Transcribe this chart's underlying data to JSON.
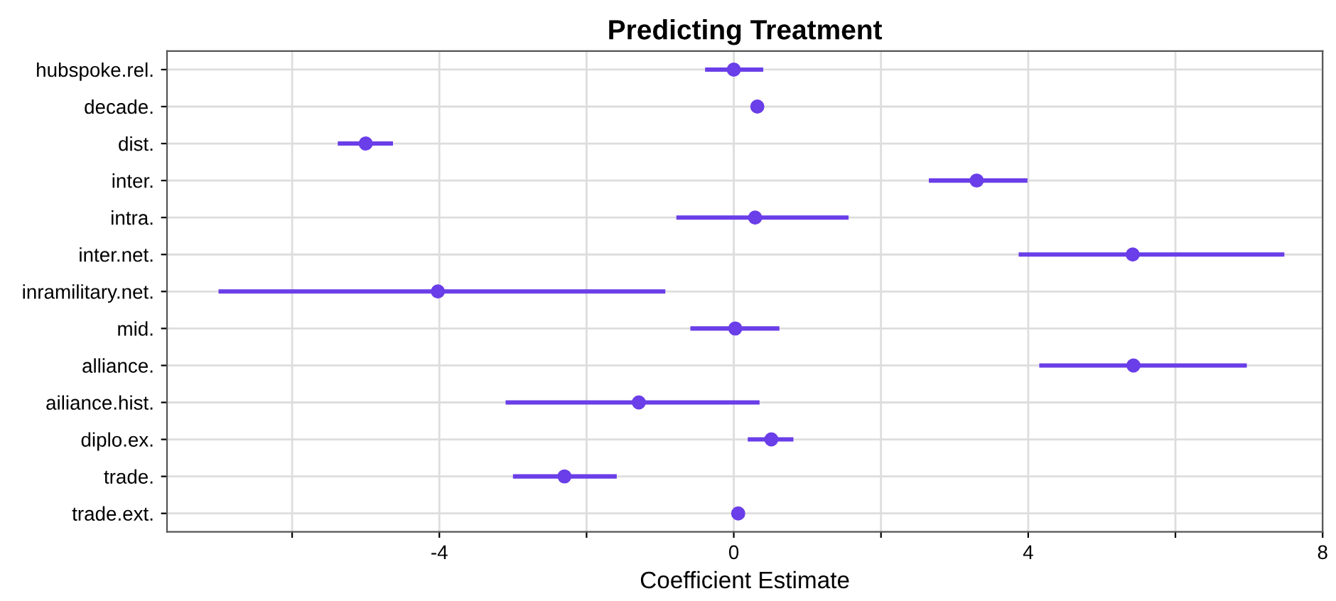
{
  "chart_data": {
    "type": "scatter",
    "orientation": "horizontal",
    "title": "Predicting Treatment",
    "xlabel": "Coefficient Estimate",
    "categories": [
      "hubspoke.rel.",
      "decade.",
      "dist.",
      "inter.",
      "intra.",
      "inter.net.",
      "inramilitary.net.",
      "mid.",
      "alliance.",
      "ailiance.hist.",
      "diplo.ex.",
      "trade.",
      "trade.ext."
    ],
    "values": [
      0.0,
      0.32,
      -5.0,
      3.3,
      0.29,
      5.42,
      -4.02,
      0.02,
      5.43,
      -1.29,
      0.51,
      -2.3,
      0.06
    ],
    "errors": [
      [
        -0.39,
        0.4
      ],
      null,
      [
        -5.38,
        -4.63
      ],
      [
        2.65,
        3.99
      ],
      [
        -0.78,
        1.56
      ],
      [
        3.87,
        7.48
      ],
      [
        -7.0,
        -0.93
      ],
      [
        -0.59,
        0.62
      ],
      [
        4.15,
        6.97
      ],
      [
        -3.1,
        0.35
      ],
      [
        0.19,
        0.81
      ],
      [
        -3.0,
        -1.59
      ],
      null
    ],
    "color": "#6a3ee8",
    "marker": "circle",
    "grid": true,
    "xlim": [
      -7.7,
      8
    ],
    "xticks": [
      {
        "value": -6,
        "label": null
      },
      -4,
      {
        "value": -2,
        "label": null
      },
      0,
      {
        "value": 2,
        "label": null
      },
      4,
      {
        "value": 6,
        "label": null
      },
      8
    ]
  }
}
